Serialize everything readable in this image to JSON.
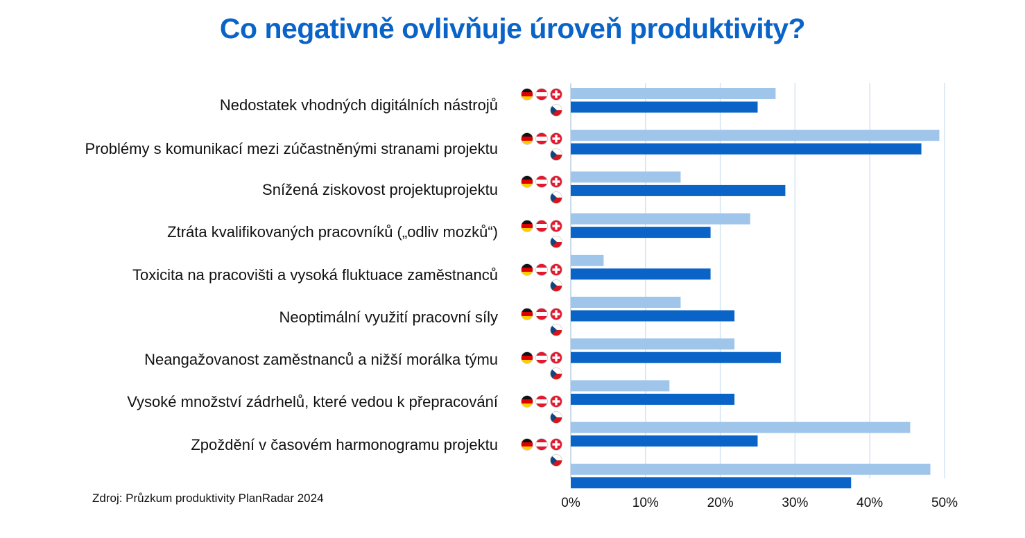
{
  "chart_data": {
    "type": "bar",
    "orientation": "horizontal",
    "title": "Co negativně ovlivňuje úroveň produktivity?",
    "source": "Zdroj: Průzkum produktivity PlanRadar 2024",
    "categories": [
      "Nedostatek vhodných digitálních nástrojů",
      "Problémy s komunikací mezi zúčastněnými stranami projektu",
      "Snížená ziskovost projektuprojektu",
      "Ztráta kvalifikovaných pracovníků („odliv mozků“)",
      "Toxicita na pracovišti a vysoká fluktuace zaměstnanců",
      "Neoptimální využití pracovní síly",
      "Neangažovanost zaměstnanců a nižší morálka týmu",
      "Vysoké množství zádrhelů, které vedou k přepracování",
      "Zpoždění v časovém harmonogramu projektu",
      null
    ],
    "series": [
      {
        "color": "#9fc5ea",
        "values": [
          27.4,
          49.3,
          14.7,
          24.0,
          4.4,
          14.7,
          21.9,
          13.2,
          45.4,
          48.1
        ]
      },
      {
        "color": "#0a64c8",
        "values": [
          25.0,
          46.9,
          28.7,
          18.7,
          18.7,
          21.9,
          28.1,
          21.9,
          25.0,
          37.5
        ]
      }
    ],
    "xlim": [
      0,
      50
    ],
    "xticks": [
      {
        "value": 0,
        "label": "0%"
      },
      {
        "value": 10,
        "label": "10%"
      },
      {
        "value": 20,
        "label": "20%"
      },
      {
        "value": 30,
        "label": "30%"
      },
      {
        "value": 40,
        "label": "40%"
      },
      {
        "value": 50,
        "label": "50%"
      }
    ],
    "grid": true
  }
}
